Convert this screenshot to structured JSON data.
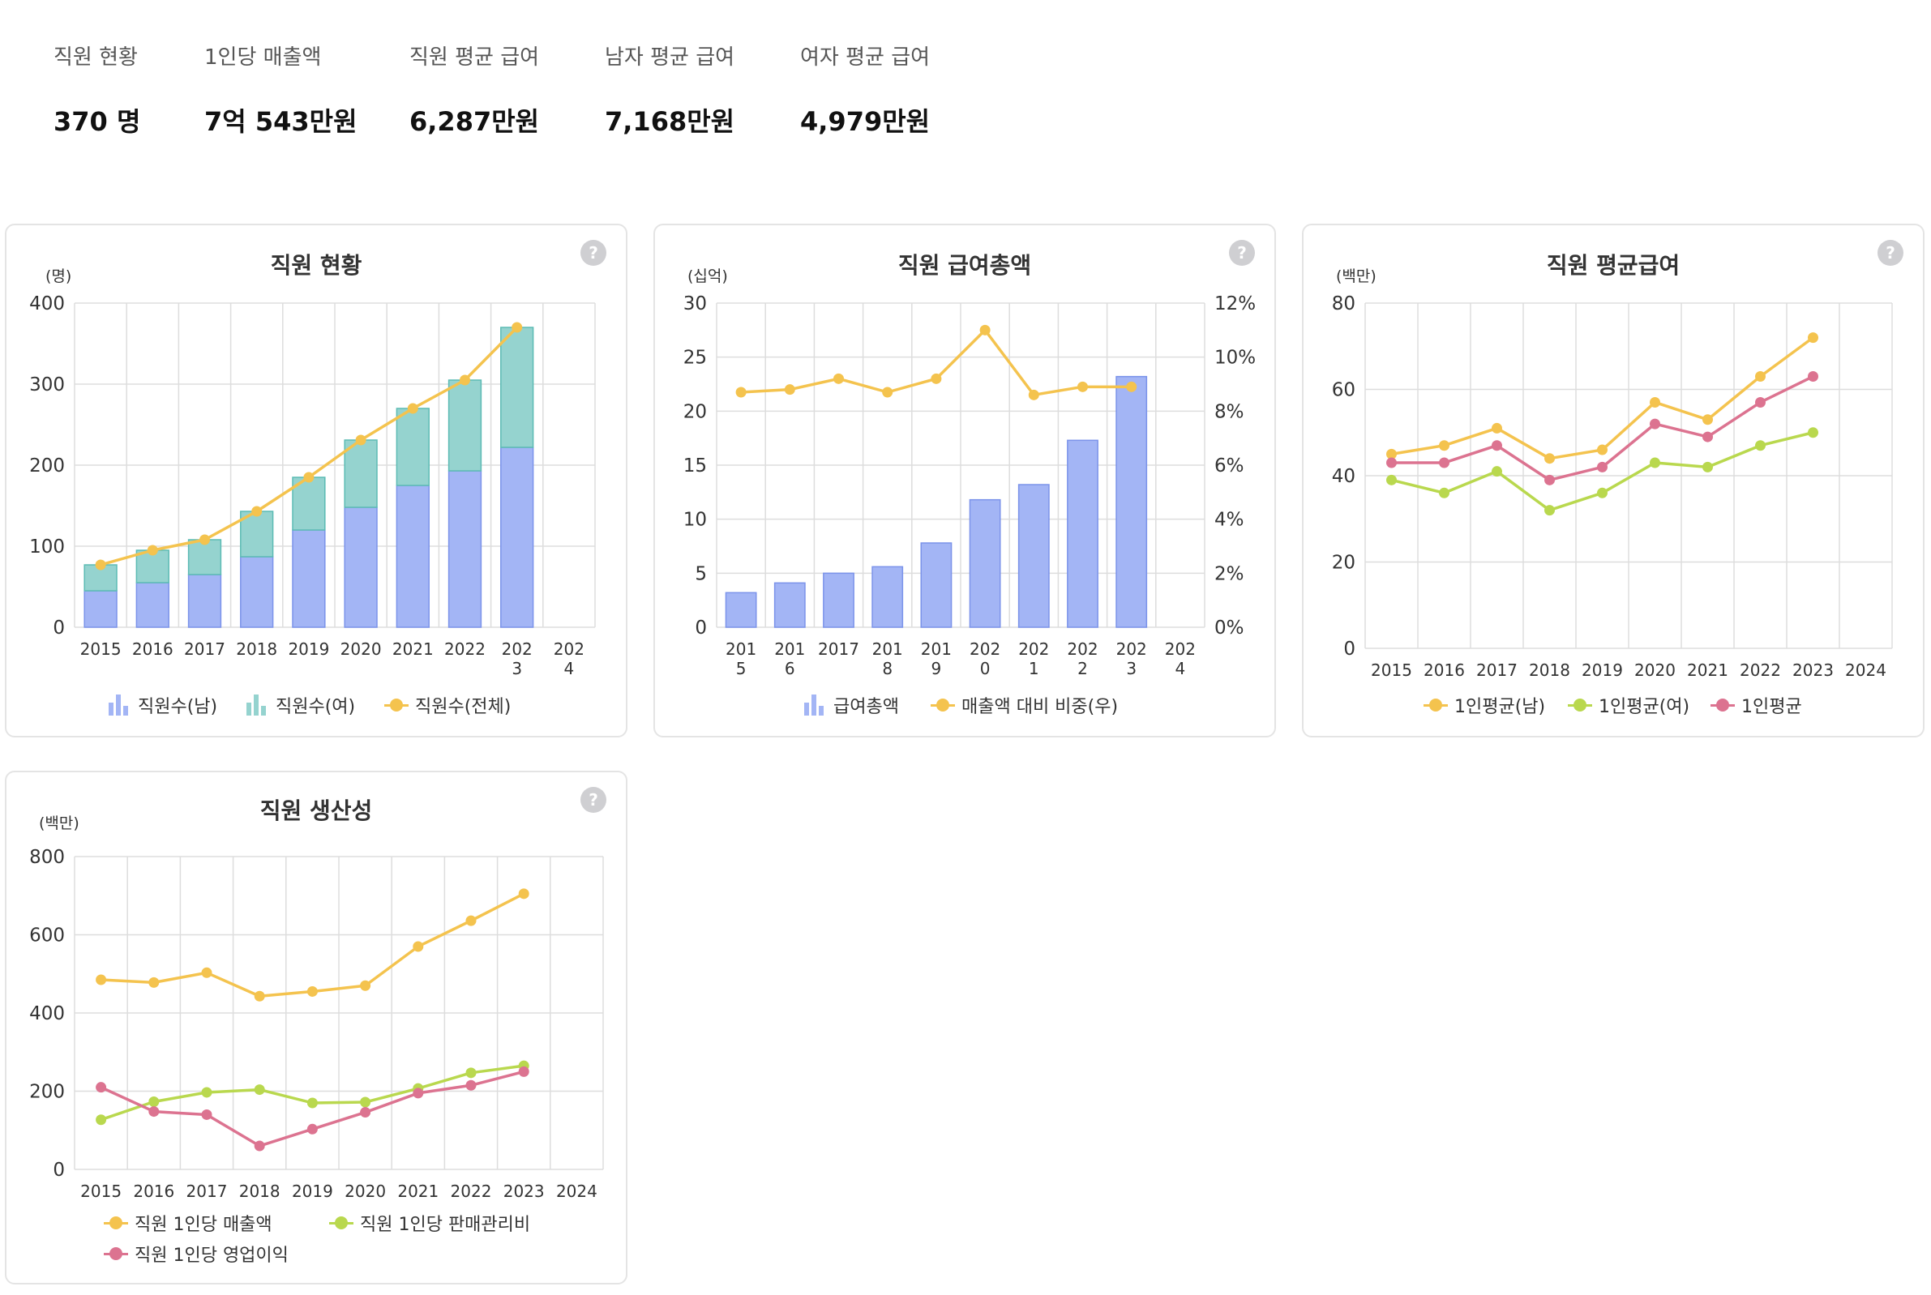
{
  "summary": [
    {
      "label": "직원 현황",
      "value": "370 명"
    },
    {
      "label": "1인당 매출액",
      "value": "7억 543만원"
    },
    {
      "label": "직원 평균 급여",
      "value": "6,287만원"
    },
    {
      "label": "남자 평균 급여",
      "value": "7,168만원"
    },
    {
      "label": "여자 평균 급여",
      "value": "4,979만원"
    }
  ],
  "help_label": "?",
  "colors": {
    "blue": "#a3b5f5",
    "blue_stroke": "#7b93ea",
    "teal": "#95d3cf",
    "teal_stroke": "#5cbbb4",
    "yellow": "#f4c34e",
    "green": "#b9d84e",
    "pink": "#dc7390",
    "grid": "#dddddd"
  },
  "chart_data": [
    {
      "type": "bar",
      "title": "직원 현황",
      "unit": "(명)",
      "categories": [
        "2015",
        "2016",
        "2017",
        "2018",
        "2019",
        "2020",
        "2021",
        "2022",
        "2023",
        "2024"
      ],
      "tick_labels": [
        "2015",
        "2016",
        "2017",
        "2018",
        "2019",
        "2020",
        "2021",
        "2022",
        "202\n3",
        "202\n4"
      ],
      "y_ticks": [
        0,
        100,
        200,
        300,
        400
      ],
      "ylim": [
        0,
        400
      ],
      "stacked": true,
      "series": [
        {
          "name": "직원수(남)",
          "kind": "bar",
          "values": [
            45,
            55,
            65,
            87,
            120,
            148,
            175,
            193,
            222,
            null
          ]
        },
        {
          "name": "직원수(여)",
          "kind": "bar",
          "values": [
            32,
            40,
            43,
            56,
            65,
            83,
            95,
            112,
            148,
            null
          ]
        },
        {
          "name": "직원수(전체)",
          "kind": "line",
          "values": [
            77,
            95,
            108,
            143,
            185,
            231,
            270,
            305,
            370,
            null
          ]
        }
      ]
    },
    {
      "type": "bar",
      "title": "직원 급여총액",
      "unit": "(십억)",
      "categories": [
        "2015",
        "2016",
        "2017",
        "2018",
        "2019",
        "2020",
        "2021",
        "2022",
        "2023",
        "2024"
      ],
      "tick_labels": [
        "201\n5",
        "201\n6",
        "2017",
        "201\n8",
        "201\n9",
        "202\n0",
        "202\n1",
        "202\n2",
        "202\n3",
        "202\n4"
      ],
      "y_ticks": [
        0,
        5,
        10,
        15,
        20,
        25,
        30
      ],
      "ylim": [
        0,
        30
      ],
      "y2_ticks": [
        "0%",
        "2%",
        "4%",
        "6%",
        "8%",
        "10%",
        "12%"
      ],
      "y2lim": [
        0,
        12
      ],
      "series": [
        {
          "name": "급여총액",
          "kind": "bar",
          "values": [
            3.2,
            4.1,
            5.0,
            5.6,
            7.8,
            11.8,
            13.2,
            17.3,
            23.2,
            null
          ]
        },
        {
          "name": "매출액 대비 비중(우)",
          "kind": "line",
          "axis": "right",
          "values": [
            8.7,
            8.8,
            9.2,
            8.7,
            9.2,
            11.0,
            8.6,
            8.9,
            8.9,
            null
          ]
        }
      ]
    },
    {
      "type": "line",
      "title": "직원 평균급여",
      "unit": "(백만)",
      "categories": [
        "2015",
        "2016",
        "2017",
        "2018",
        "2019",
        "2020",
        "2021",
        "2022",
        "2023",
        "2024"
      ],
      "tick_labels": [
        "2015",
        "2016",
        "2017",
        "2018",
        "2019",
        "2020",
        "2021",
        "2022",
        "2023",
        "2024"
      ],
      "y_ticks": [
        0,
        20,
        40,
        60,
        80
      ],
      "ylim": [
        0,
        80
      ],
      "series": [
        {
          "name": "1인평균(남)",
          "values": [
            45,
            47,
            51,
            44,
            46,
            57,
            53,
            63,
            72,
            null
          ]
        },
        {
          "name": "1인평균(여)",
          "values": [
            39,
            36,
            41,
            32,
            36,
            43,
            42,
            47,
            50,
            null
          ]
        },
        {
          "name": "1인평균",
          "values": [
            43,
            43,
            47,
            39,
            42,
            52,
            49,
            57,
            63,
            null
          ]
        }
      ]
    },
    {
      "type": "line",
      "title": "직원 생산성",
      "unit": "(백만)",
      "categories": [
        "2015",
        "2016",
        "2017",
        "2018",
        "2019",
        "2020",
        "2021",
        "2022",
        "2023",
        "2024"
      ],
      "tick_labels": [
        "2015",
        "2016",
        "2017",
        "2018",
        "2019",
        "2020",
        "2021",
        "2022",
        "2023",
        "2024"
      ],
      "y_ticks": [
        0,
        200,
        400,
        600,
        800
      ],
      "ylim": [
        0,
        800
      ],
      "series": [
        {
          "name": "직원 1인당 매출액",
          "values": [
            485,
            478,
            503,
            443,
            455,
            470,
            570,
            636,
            705,
            null
          ]
        },
        {
          "name": "직원 1인당 판매관리비",
          "values": [
            127,
            173,
            197,
            204,
            170,
            172,
            207,
            247,
            265,
            null
          ]
        },
        {
          "name": "직원 1인당 영업이익",
          "values": [
            210,
            148,
            140,
            60,
            103,
            146,
            195,
            215,
            250,
            null
          ]
        }
      ]
    }
  ]
}
